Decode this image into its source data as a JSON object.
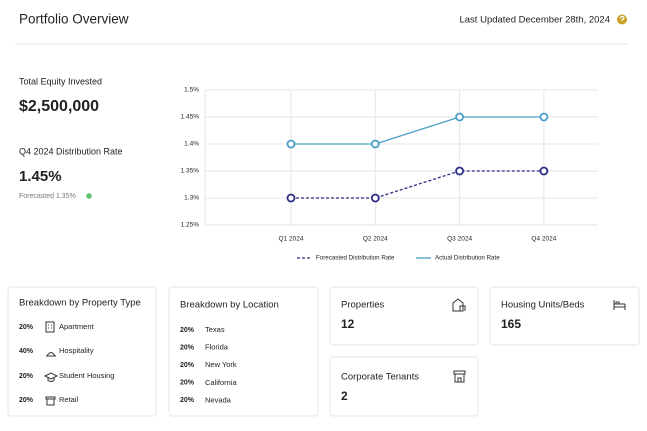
{
  "header": {
    "title": "Portfolio Overview",
    "last_updated": "Last Updated December 28th, 2024"
  },
  "summary": {
    "equity_label": "Total Equity Invested",
    "equity_value": "$2,500,000",
    "rate_label": "Q4 2024 Distribution Rate",
    "rate_value": "1.45%",
    "forecast_note": "Forecasted 1.35%"
  },
  "chart_data": {
    "type": "line",
    "categories": [
      "Q1 2024",
      "Q2 2024",
      "Q3 2024",
      "Q4 2024"
    ],
    "series": [
      {
        "name": "Forecasted Distribution Rate",
        "color": "#2b2d82",
        "dashed": true,
        "values": [
          1.3,
          1.3,
          1.35,
          1.35
        ]
      },
      {
        "name": "Actual Distribution Rate",
        "color": "#4a9fc8",
        "dashed": false,
        "values": [
          1.4,
          1.4,
          1.45,
          1.45
        ]
      }
    ],
    "ylim": [
      1.25,
      1.5
    ],
    "yticks": [
      {
        "value": 1.25,
        "label": "1.25%"
      },
      {
        "value": 1.3,
        "label": "1.3%"
      },
      {
        "value": 1.35,
        "label": "1.35%"
      },
      {
        "value": 1.4,
        "label": "1.4%"
      },
      {
        "value": 1.45,
        "label": "1.45%"
      },
      {
        "value": 1.5,
        "label": "1.5%"
      }
    ],
    "grid": true,
    "legend": "bottom"
  },
  "property_types": {
    "title": "Breakdown by Property Type",
    "rows": [
      [
        "20%",
        "Apartment"
      ],
      [
        "40%",
        "Hospitality"
      ],
      [
        "20%",
        "Student Housing"
      ],
      [
        "20%",
        "Retail"
      ]
    ]
  },
  "locations": {
    "title": "Breakdown by Location",
    "rows": [
      [
        "20%",
        "Texas"
      ],
      [
        "20%",
        "Florida"
      ],
      [
        "20%",
        "New York"
      ],
      [
        "20%",
        "California"
      ],
      [
        "20%",
        "Nevada"
      ]
    ]
  },
  "stats": [
    {
      "label": "Properties",
      "value": "12"
    },
    {
      "label": "Corporate Tenants",
      "value": "2"
    },
    {
      "label": "Housing Units/Beds",
      "value": "165"
    }
  ]
}
